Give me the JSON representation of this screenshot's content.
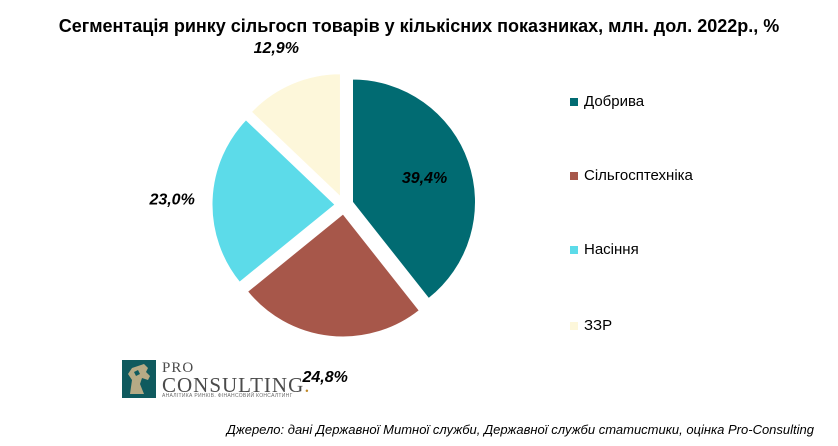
{
  "chart_data": {
    "type": "pie",
    "title": "Сегментація ринку сільгосп товарів у кількісних показниках, млн. дол. 2022р., %",
    "slices": [
      {
        "name": "Добрива",
        "value": 39.4,
        "label": "39,4%",
        "color": "#016b72"
      },
      {
        "name": "Сільгосптехніка",
        "value": 24.8,
        "label": "24,8%",
        "color": "#a7574a"
      },
      {
        "name": "Насіння",
        "value": 23.0,
        "label": "23,0%",
        "color": "#5cdbe9"
      },
      {
        "name": "ЗЗР",
        "value": 12.9,
        "label": "12,9%",
        "color": "#fdf7da"
      }
    ],
    "legend_placement": "right"
  },
  "logo": {
    "pro": "PRO",
    "consulting": "CONSULTING",
    "dot": ".",
    "tagline": "АНАЛІТИКА РИНКІВ. ФІНАНСОВИЙ КОНСАЛТИНГ"
  },
  "source": "Джерело: дані Державної Митної служби, Державної служби статистики, оцінка Pro-Consulting"
}
